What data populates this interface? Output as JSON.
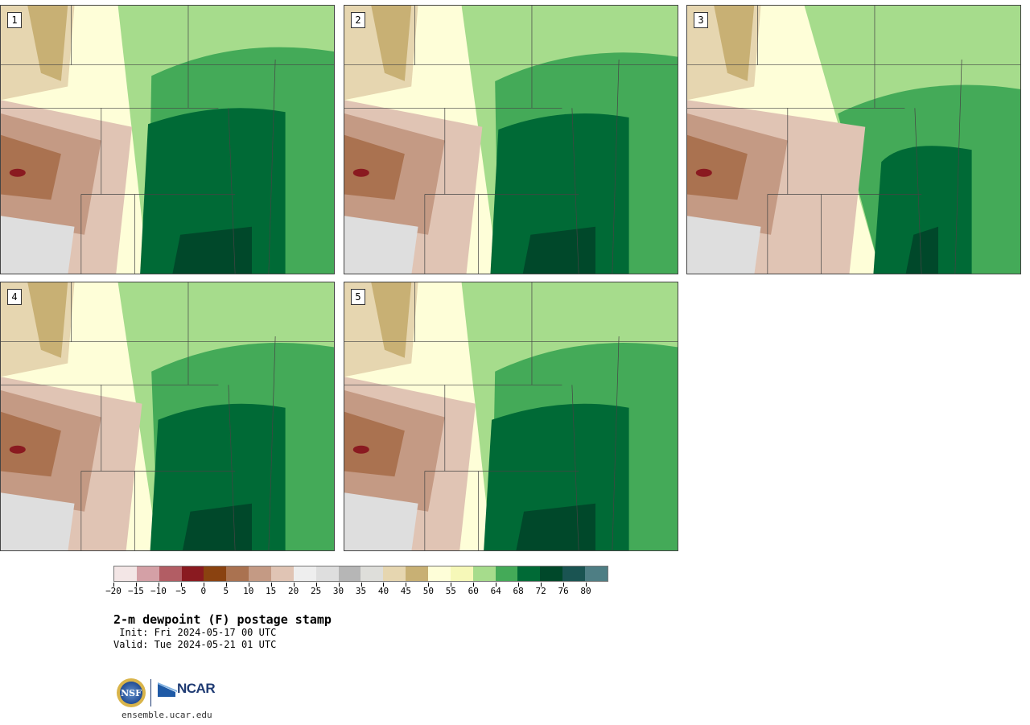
{
  "title": "2-m dewpoint (F) postage stamp",
  "init": " Init: Fri 2024-05-17 00 UTC",
  "valid": "Valid: Tue 2024-05-21 01 UTC",
  "site": "ensemble.ucar.edu",
  "logos": {
    "nsf": "NSF",
    "ncar": "NCAR"
  },
  "panels": [
    {
      "label": "1"
    },
    {
      "label": "2"
    },
    {
      "label": "3"
    },
    {
      "label": "4"
    },
    {
      "label": "5"
    }
  ],
  "colorbar": {
    "colors": [
      "#f3e6e6",
      "#d4a0a6",
      "#b25d64",
      "#8a1a20",
      "#8a4210",
      "#aa7250",
      "#c49a84",
      "#e0c4b4",
      "#eeeeee",
      "#dedede",
      "#b6b6b6",
      "#dededa",
      "#e6d6b0",
      "#c8b074",
      "#fefed8",
      "#f6f8b8",
      "#a6dc8c",
      "#44aa58",
      "#006a36",
      "#00482a",
      "#1a5452",
      "#4e7e84"
    ],
    "tick_labels": [
      "−20",
      "−15",
      "−10",
      "−5",
      "0",
      "5",
      "10",
      "15",
      "20",
      "25",
      "30",
      "35",
      "40",
      "45",
      "50",
      "55",
      "60",
      "64",
      "68",
      "72",
      "76",
      "80"
    ]
  },
  "map_colors": {
    "dry_brown": "#aa7250",
    "light_brown": "#c49a84",
    "pale_brown": "#e0c4b4",
    "grey": "#dedede",
    "tan": "#c8b074",
    "beige": "#e6d6b0",
    "pale_yellow": "#fefed8",
    "light_yellow": "#f6f8b8",
    "light_green": "#a6dc8c",
    "green": "#44aa58",
    "dark_green": "#006a36",
    "darkest_green": "#00482a",
    "maroon": "#8a1a20"
  }
}
